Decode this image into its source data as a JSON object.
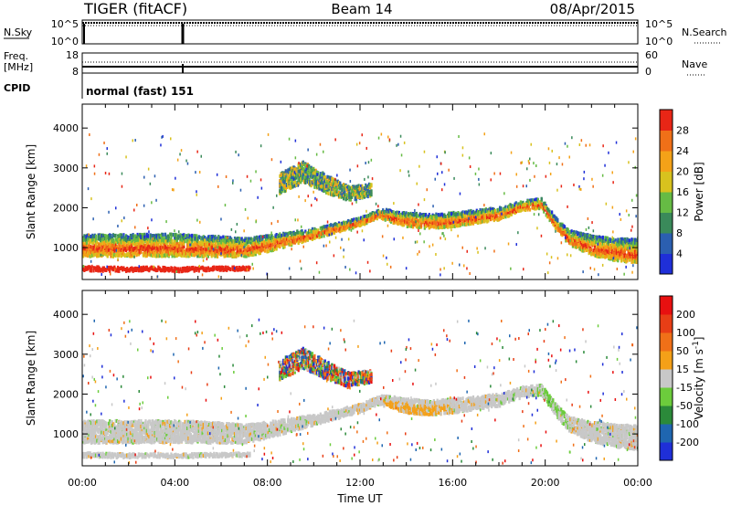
{
  "header": {
    "radar": "TIGER (fitACF)",
    "beam": "Beam 14",
    "date": "08/Apr/2015"
  },
  "top_panel": {
    "left_label": "N.Sky",
    "right_label": "N.Search",
    "left_ticks": [
      "10^5",
      "10^0"
    ],
    "right_ticks": [
      "10^5",
      "10^0"
    ]
  },
  "freq_panel": {
    "left_label_1": "Freq.",
    "left_label_2": "[MHz]",
    "left_ticks": [
      "18",
      "8"
    ],
    "right_label": "Nave",
    "right_ticks": [
      "60",
      "0"
    ]
  },
  "cpid_panel": {
    "label": "CPID",
    "value": "normal (fast) 151"
  },
  "chart_data": [
    {
      "type": "heatmap",
      "title": "",
      "ylabel": "Slant Range [km]",
      "yticks": [
        "1000",
        "2000",
        "3000",
        "4000"
      ],
      "ylim": [
        200,
        4600
      ],
      "xlim": [
        0,
        24
      ],
      "colorbar": {
        "label": "Power [dB]",
        "ticks": [
          "4",
          "8",
          "12",
          "16",
          "20",
          "24",
          "28"
        ],
        "range": [
          0,
          32
        ],
        "colors": [
          "#1f2fd8",
          "#2b5fb0",
          "#3a8a5a",
          "#66bb44",
          "#d8c21e",
          "#f4a218",
          "#f07018",
          "#e82616"
        ]
      },
      "bands": [
        {
          "name": "main",
          "x": [
            0,
            2,
            4,
            6,
            7,
            8,
            10,
            12,
            12.8,
            13.2,
            14,
            15,
            16,
            18,
            19,
            19.8,
            20.5,
            21,
            22,
            23,
            24
          ],
          "y": [
            1050,
            1050,
            1060,
            1020,
            1000,
            1100,
            1350,
            1650,
            1850,
            1800,
            1700,
            1650,
            1700,
            1850,
            2050,
            2100,
            1550,
            1250,
            1050,
            950,
            900
          ],
          "width": [
            550,
            550,
            550,
            500,
            450,
            400,
            250,
            200,
            200,
            300,
            350,
            350,
            350,
            300,
            250,
            250,
            300,
            350,
            500,
            550,
            600
          ]
        },
        {
          "name": "near",
          "x": [
            0,
            1,
            2,
            3,
            4,
            5,
            6,
            7.2
          ],
          "y": [
            470,
            460,
            450,
            470,
            440,
            460,
            470,
            480
          ],
          "width": [
            100,
            100,
            90,
            90,
            90,
            90,
            80,
            80
          ]
        },
        {
          "name": "upper",
          "x": [
            8.5,
            9.5,
            10.5,
            11.5,
            12.5
          ],
          "y": [
            2600,
            2900,
            2600,
            2350,
            2450
          ],
          "width": [
            500,
            500,
            450,
            350,
            300
          ]
        }
      ]
    },
    {
      "type": "heatmap",
      "title": "",
      "ylabel": "Slant Range [km]",
      "xlabel": "Time UT",
      "xticks": [
        "00:00",
        "04:00",
        "08:00",
        "12:00",
        "16:00",
        "20:00",
        "00:00"
      ],
      "yticks": [
        "1000",
        "2000",
        "3000",
        "4000"
      ],
      "ylim": [
        200,
        4600
      ],
      "xlim": [
        0,
        24
      ],
      "colorbar": {
        "label": "Velocity [m s-1]",
        "unit_prefix": "Velocity [m s",
        "unit_exp": "-1",
        "unit_suffix": "]",
        "ticks": [
          "200",
          "100",
          "50",
          "15",
          "-15",
          "-50",
          "-100",
          "-200"
        ],
        "range": [
          -250,
          250
        ],
        "colors": [
          "#1f2fd8",
          "#1f66b0",
          "#2b8a3a",
          "#6ccc3c",
          "#c8c8c8",
          "#f4a018",
          "#f07018",
          "#e83e16",
          "#e81010"
        ]
      },
      "bands": [
        {
          "name": "main",
          "x": [
            0,
            2,
            4,
            6,
            7,
            8,
            10,
            12,
            12.8,
            13.2,
            14,
            15,
            16,
            18,
            19,
            19.8,
            20.5,
            21,
            22,
            23,
            24
          ],
          "y": [
            1050,
            1050,
            1060,
            1020,
            1000,
            1100,
            1350,
            1650,
            1850,
            1800,
            1700,
            1650,
            1700,
            1850,
            2050,
            2100,
            1550,
            1250,
            1050,
            950,
            900
          ],
          "width": [
            550,
            550,
            550,
            500,
            450,
            400,
            250,
            200,
            200,
            300,
            350,
            350,
            350,
            300,
            250,
            250,
            300,
            350,
            500,
            550,
            600
          ]
        },
        {
          "name": "near",
          "x": [
            0,
            1,
            2,
            3,
            4,
            5,
            6,
            7.2
          ],
          "y": [
            470,
            460,
            450,
            470,
            440,
            460,
            470,
            480
          ],
          "width": [
            100,
            100,
            90,
            90,
            90,
            90,
            80,
            80
          ]
        },
        {
          "name": "upper",
          "x": [
            8.5,
            9.5,
            10.5,
            11.5,
            12.5
          ],
          "y": [
            2600,
            2900,
            2600,
            2350,
            2450
          ],
          "width": [
            500,
            500,
            450,
            350,
            300
          ]
        }
      ]
    }
  ]
}
